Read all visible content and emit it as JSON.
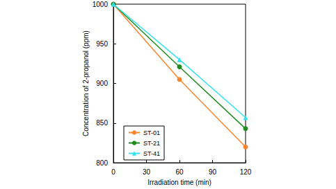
{
  "chart_data": {
    "type": "line",
    "x_label": "Irradiation time (min)",
    "y_label": "Concentration of 2-propanol (ppm)",
    "x": [
      0,
      60,
      120
    ],
    "series": [
      {
        "name": "ST-01",
        "color": "#f7862e",
        "marker": "circle",
        "line_style": "solid",
        "values": [
          1000,
          905,
          820
        ]
      },
      {
        "name": "ST-21",
        "color": "#1e8c1e",
        "marker": "circle",
        "line_style": "solid",
        "values": [
          1000,
          921,
          843
        ]
      },
      {
        "name": "ST-41",
        "color": "#35e2f0",
        "marker": "triangle",
        "line_style": "solid",
        "values": [
          1000,
          930,
          857
        ]
      }
    ],
    "xlim": [
      0,
      120
    ],
    "xticks": [
      0,
      30,
      60,
      90,
      120
    ],
    "ylim": [
      800,
      1000
    ],
    "yticks": [
      800,
      850,
      900,
      950,
      1000
    ],
    "grid": false,
    "legend": "lower left"
  }
}
